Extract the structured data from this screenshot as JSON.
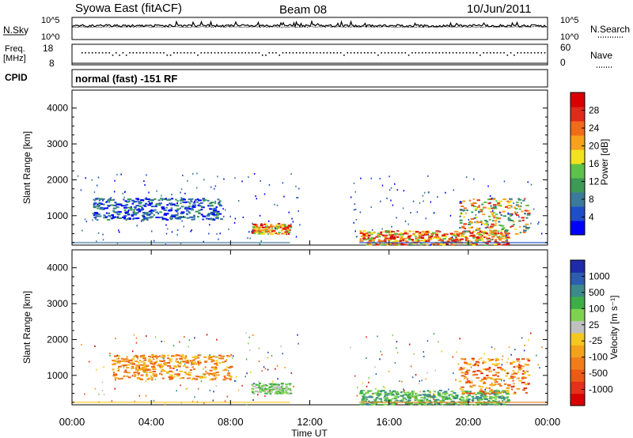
{
  "header": {
    "station": "Syowa East (fitACF)",
    "beam": "Beam 08",
    "date": "10/Jun/2011"
  },
  "nsky_panel": {
    "left_label": "N.Sky",
    "left_ticks": [
      "10^5",
      "10^0"
    ],
    "right_label": "N.Search",
    "right_ticks": [
      "10^5",
      "10^0"
    ]
  },
  "freq_panel": {
    "left_label_1": "Freq.",
    "left_label_2": "[MHz]",
    "left_ticks": [
      "18",
      "8"
    ],
    "right_label": "Nave",
    "right_ticks": [
      "60",
      "0"
    ]
  },
  "cpid_panel": {
    "label": "CPID",
    "text": "normal (fast) -151 RF"
  },
  "chart_data": [
    {
      "type": "heatmap",
      "name": "power",
      "xlabel": "",
      "ylabel": "Slant Range [km]",
      "x_ticks": [
        "00:00",
        "04:00",
        "08:00",
        "12:00",
        "16:00",
        "20:00",
        "00:00"
      ],
      "y_ticks": [
        "1000",
        "2000",
        "3000",
        "4000"
      ],
      "ylim": [
        180,
        4500
      ],
      "colorbar": {
        "label": "Power [dB]",
        "ticks": [
          "4",
          "8",
          "12",
          "16",
          "20",
          "24",
          "28"
        ],
        "colors": [
          "#0000ff",
          "#1f4fc8",
          "#3b7a9a",
          "#3c9a55",
          "#5cc24a",
          "#f2e21d",
          "#f7a21a",
          "#ef6c1a",
          "#e02a1a",
          "#d90000"
        ]
      },
      "scatter_clusters": [
        {
          "t": [
            1.0,
            7.5
          ],
          "r": [
            900,
            1500
          ],
          "value": 8,
          "note": "bands near 1000-1400 km"
        },
        {
          "t": [
            9.0,
            11.0
          ],
          "r": [
            500,
            800
          ],
          "value": 20
        },
        {
          "t": [
            14.5,
            22.0
          ],
          "r": [
            200,
            600
          ],
          "value": 20
        },
        {
          "t": [
            19.5,
            23.0
          ],
          "r": [
            500,
            1500
          ],
          "value": 16
        }
      ]
    },
    {
      "type": "heatmap",
      "name": "velocity",
      "xlabel": "Time UT",
      "ylabel": "Slant Range [km]",
      "x_ticks": [
        "00:00",
        "04:00",
        "08:00",
        "12:00",
        "16:00",
        "20:00",
        "00:00"
      ],
      "y_ticks": [
        "1000",
        "2000",
        "3000",
        "4000"
      ],
      "ylim": [
        180,
        4500
      ],
      "colorbar": {
        "label": "Velocity [m s⁻¹]",
        "ticks": [
          "1000",
          "500",
          "100",
          "25",
          "-25",
          "-100",
          "-500",
          "-1000"
        ],
        "colors": [
          "#1f2ba8",
          "#2e5cb0",
          "#3c8a8a",
          "#3cae46",
          "#7fd24f",
          "#c0c0c0",
          "#f5c81e",
          "#f4a21c",
          "#f07d1a",
          "#ec5a16",
          "#e6301a",
          "#d90000"
        ]
      },
      "scatter_clusters": [
        {
          "t": [
            2.0,
            8.0
          ],
          "r": [
            900,
            1600
          ],
          "value": -300
        },
        {
          "t": [
            9.0,
            11.0
          ],
          "r": [
            500,
            800
          ],
          "value": 150
        },
        {
          "t": [
            14.5,
            22.0
          ],
          "r": [
            200,
            600
          ],
          "value": 120
        },
        {
          "t": [
            19.5,
            23.0
          ],
          "r": [
            500,
            1500
          ],
          "value": -200
        }
      ]
    }
  ]
}
